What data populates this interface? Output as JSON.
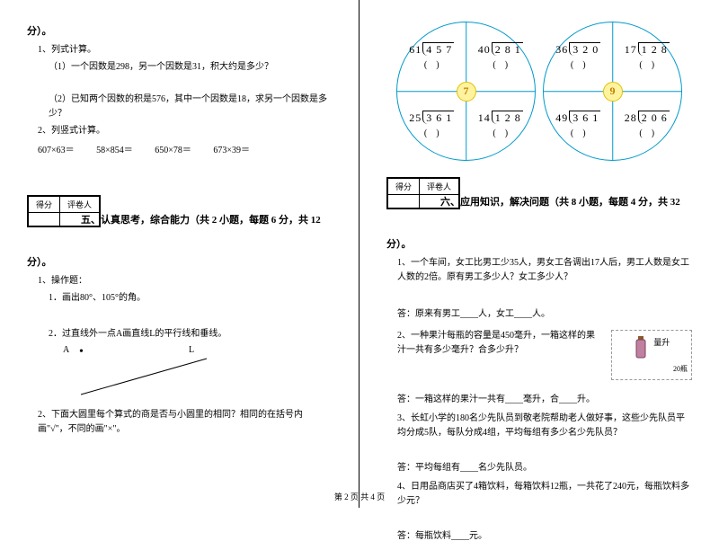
{
  "left": {
    "section4_tail": "分）。",
    "q1": "1、列式计算。",
    "q1_1": "（1）一个因数是298，另一个因数是31，积大约是多少？",
    "q1_2": "（2）已知两个因数的积是576，其中一个因数是18，求另一个因数是多少？",
    "q2": "2、列竖式计算。",
    "calc1": "607×63＝",
    "calc2": "58×854＝",
    "calc3": "650×78＝",
    "calc4": "673×39＝",
    "score_a": "得分",
    "score_b": "评卷人",
    "section5": "五、认真思考，综合能力（共 2 小题，每题 6 分，共 12",
    "section5_tail": "分）。",
    "q5_1": "1、操作题：",
    "q5_1_1": "1．画出80°、105°的角。",
    "q5_1_2": "2．过直线外一点A画直线L的平行线和垂线。",
    "label_A": "A",
    "label_dot": "•",
    "label_L": "L",
    "q5_2": "2、下面大圆里每个算式的商是否与小圆里的相同？相同的在括号内画\"√\"，不同的画\"×\"。"
  },
  "right": {
    "circles": [
      {
        "badge": "7",
        "quads": [
          {
            "div": "61)4 5 7",
            "paren": "(　)"
          },
          {
            "div": "40)2 8 1",
            "paren": "(　)"
          },
          {
            "div": "25)3 6 1",
            "paren": "(　)"
          },
          {
            "div": "14)1 2 8",
            "paren": "(　)"
          }
        ]
      },
      {
        "badge": "9",
        "quads": [
          {
            "div": "36)3 2 0",
            "paren": "(　)"
          },
          {
            "div": "17)1 2 8",
            "paren": "(　)"
          },
          {
            "div": "49)3 6 1",
            "paren": "(　)"
          },
          {
            "div": "28)2 0 6",
            "paren": "(　)"
          }
        ]
      }
    ],
    "score_a": "得分",
    "score_b": "评卷人",
    "section6": "六、应用知识，解决问题（共 8 小题，每题 4 分，共 32",
    "section6_tail": "分）。",
    "q1": "1、一个车间，女工比男工少35人，男女工各调出17人后，男工人数是女工人数的2倍。原有男工多少人？女工多少人？",
    "a1": "答：原来有男工____人，女工____人。",
    "q2": "2、一种果汁每瓶的容量是450毫升，一箱这样的果汁一共有多少毫升？合多少升？",
    "box_label": "量升",
    "box_count": "20瓶",
    "a2": "答：一箱这样的果汁一共有____毫升，合____升。",
    "q3": "3、长虹小学的180名少先队员到敬老院帮助老人做好事，这些少先队员平均分成5队，每队分成4组，平均每组有多少名少先队员？",
    "a3": "答：平均每组有____名少先队员。",
    "q4": "4、日用品商店买了4箱饮料，每箱饮料12瓶，一共花了240元，每瓶饮料多少元？",
    "a4": "答：每瓶饮料____元。"
  },
  "footer": "第 2 页 共 4 页"
}
